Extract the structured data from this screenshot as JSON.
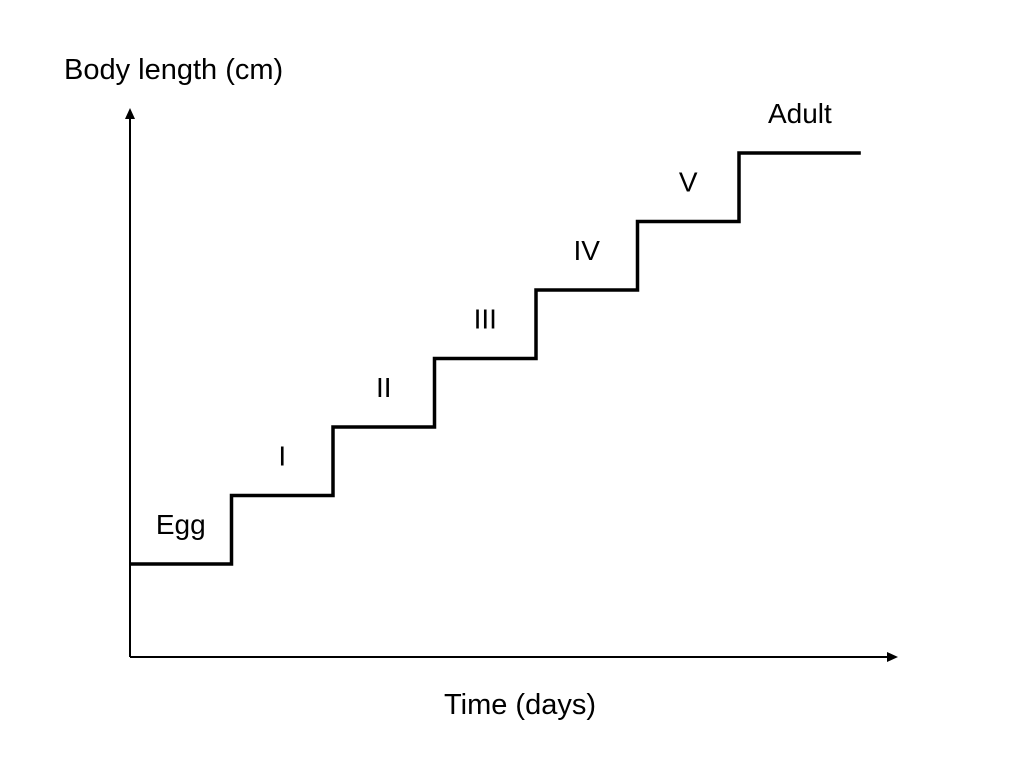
{
  "chart_data": {
    "type": "line",
    "title": "",
    "xlabel": "Time (days)",
    "ylabel": "Body length (cm)",
    "stages": [
      "Egg",
      "I",
      "II",
      "III",
      "IV",
      "V",
      "Adult"
    ],
    "series": [
      {
        "step": true,
        "x": [
          0,
          1,
          2,
          3,
          4,
          5,
          6,
          7.2
        ],
        "y": [
          0,
          1,
          2,
          3,
          4,
          5,
          6,
          6
        ]
      }
    ],
    "xlim": [
      0,
      7.7
    ],
    "ylim": [
      -1.4,
      7.5
    ],
    "x_ticks": false,
    "y_ticks": false,
    "grid": false,
    "legend": false
  }
}
